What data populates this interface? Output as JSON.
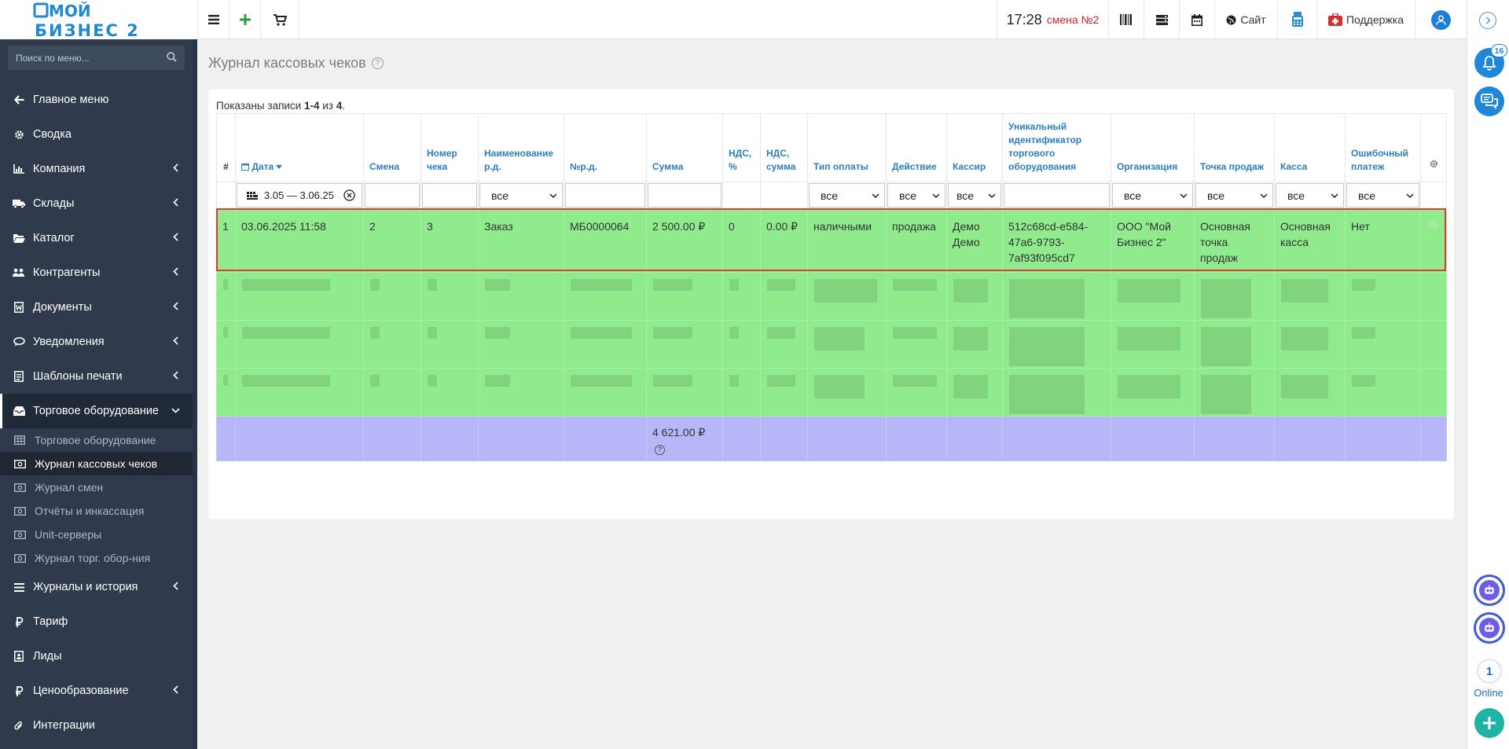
{
  "app": {
    "logo_line1": "МОЙ",
    "logo_line2": "БИЗНЕС 2"
  },
  "topbar": {
    "time": "17:28",
    "shift": "смена №2",
    "site_label": "Сайт",
    "support_label": "Поддержка"
  },
  "sidebar": {
    "search_placeholder": "Поиск по меню...",
    "items": [
      {
        "label": "Главное меню",
        "icon": "arrow-left-icon",
        "has_children": false
      },
      {
        "label": "Сводка",
        "icon": "gear-icon",
        "has_children": false
      },
      {
        "label": "Компания",
        "icon": "chart-icon",
        "has_children": true
      },
      {
        "label": "Склады",
        "icon": "truck-icon",
        "has_children": true
      },
      {
        "label": "Каталог",
        "icon": "folder-icon",
        "has_children": true
      },
      {
        "label": "Контрагенты",
        "icon": "users-icon",
        "has_children": true
      },
      {
        "label": "Документы",
        "icon": "document-icon",
        "has_children": true
      },
      {
        "label": "Уведомления",
        "icon": "chat-icon",
        "has_children": true
      },
      {
        "label": "Шаблоны печати",
        "icon": "template-icon",
        "has_children": true
      },
      {
        "label": "Торговое оборудование",
        "icon": "inbox-icon",
        "has_children": true,
        "expanded": true
      }
    ],
    "subitems": [
      {
        "label": "Торговое оборудование",
        "icon": "table-icon"
      },
      {
        "label": "Журнал кассовых чеков",
        "icon": "money-icon",
        "current": true
      },
      {
        "label": "Журнал смен",
        "icon": "money-icon"
      },
      {
        "label": "Отчёты и инкассация",
        "icon": "money-icon"
      },
      {
        "label": "Unit-серверы",
        "icon": "money-icon"
      },
      {
        "label": "Журнал торг. обор-ния",
        "icon": "money-icon"
      }
    ],
    "items_after": [
      {
        "label": "Журналы и история",
        "icon": "list-icon",
        "has_children": true
      },
      {
        "label": "Тариф",
        "icon": "ruble-icon",
        "has_children": false
      },
      {
        "label": "Лиды",
        "icon": "contact-icon",
        "has_children": false
      },
      {
        "label": "Ценообразование",
        "icon": "ruble-icon",
        "has_children": true
      },
      {
        "label": "Интеграции",
        "icon": "paperclip-icon",
        "has_children": false
      }
    ]
  },
  "rail": {
    "notifications_count": "16",
    "online_count": "1",
    "online_label": "Online"
  },
  "page": {
    "title": "Журнал кассовых чеков",
    "help": "?",
    "records_prefix": "Показаны записи ",
    "records_range": "1-4",
    "records_mid": " из ",
    "records_total": "4",
    "records_suffix": "."
  },
  "table": {
    "columns": [
      "#",
      "Дата",
      "Смена",
      "Номер чека",
      "Наименование р.д.",
      "№р.д.",
      "Сумма",
      "НДС, %",
      "НДС, сумма",
      "Тип оплаты",
      "Действие",
      "Кассир",
      "Уникальный идентификатор торгового оборудования",
      "Организация",
      "Точка продаж",
      "Касса",
      "Ошибочный платеж"
    ],
    "filters": {
      "date_range": "3.05 — 3.06.25",
      "select_all": "все"
    },
    "rows": [
      {
        "num": "1",
        "date": "03.06.2025 11:58",
        "shift": "2",
        "check_no": "3",
        "doc_name": "Заказ",
        "doc_no": "МБ0000064",
        "sum": "2 500.00 ₽",
        "vat_pct": "0",
        "vat_sum": "0.00 ₽",
        "payment": "наличными",
        "action": "продажа",
        "cashier": "Демо Демо",
        "device_id": "512c68cd-e584-47a6-9793-7af93f095cd7",
        "org": "ООО \"Мой Бизнес 2\"",
        "point": "Основная точка продаж",
        "register": "Основная касса",
        "error": "Нет"
      }
    ],
    "total_sum": "4 621.00 ₽",
    "total_help": "?"
  },
  "colors": {
    "row_green": "#90eb8d",
    "total_row": "#b6b6f8",
    "highlight": "#e53935",
    "sidebar_bg": "#2f3b4c",
    "link_blue": "#2a7fc1",
    "shift_red": "#c62828"
  }
}
